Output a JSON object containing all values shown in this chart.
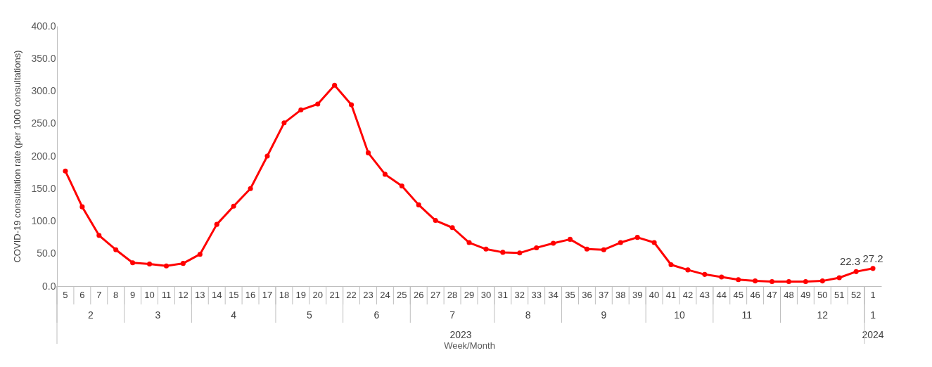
{
  "chart_data": {
    "type": "line",
    "xlabel": "Week/Month",
    "ylabel": "COVID-19 consultation rate (per 1000 consultations)",
    "categories": [
      "5",
      "6",
      "7",
      "8",
      "9",
      "10",
      "11",
      "12",
      "13",
      "14",
      "15",
      "16",
      "17",
      "18",
      "19",
      "20",
      "21",
      "22",
      "23",
      "24",
      "25",
      "26",
      "27",
      "28",
      "29",
      "30",
      "31",
      "32",
      "33",
      "34",
      "35",
      "36",
      "37",
      "38",
      "39",
      "40",
      "41",
      "42",
      "43",
      "44",
      "45",
      "46",
      "47",
      "48",
      "49",
      "50",
      "51",
      "52",
      "1"
    ],
    "series": [
      {
        "color": "#ff0000",
        "values": [
          177,
          122,
          78,
          56,
          36,
          34,
          31,
          35,
          49,
          95,
          123,
          150,
          200,
          251,
          271,
          280,
          309,
          279,
          205,
          172,
          154,
          125,
          101,
          90,
          67,
          57,
          52,
          51,
          59,
          66,
          72,
          57,
          56,
          67,
          75,
          67,
          33,
          25,
          18,
          14,
          10,
          8,
          7,
          7,
          7,
          8,
          13,
          22.3,
          27.2
        ],
        "value_labels": [
          null,
          null,
          null,
          null,
          null,
          null,
          null,
          null,
          null,
          null,
          null,
          null,
          null,
          null,
          null,
          null,
          null,
          null,
          null,
          null,
          null,
          null,
          null,
          null,
          null,
          null,
          null,
          null,
          null,
          null,
          null,
          null,
          null,
          null,
          null,
          null,
          null,
          null,
          null,
          null,
          null,
          null,
          null,
          null,
          null,
          null,
          null,
          "22.3",
          "27.2"
        ]
      }
    ],
    "ylim": [
      0,
      400
    ],
    "yticks": [
      {
        "value": 0,
        "label": "0.0"
      },
      {
        "value": 50,
        "label": "50.0"
      },
      {
        "value": 100,
        "label": "100.0"
      },
      {
        "value": 150,
        "label": "150.0"
      },
      {
        "value": 200,
        "label": "200.0"
      },
      {
        "value": 250,
        "label": "250.0"
      },
      {
        "value": 300,
        "label": "300.0"
      },
      {
        "value": 350,
        "label": "350.0"
      },
      {
        "value": 400,
        "label": "400.0"
      }
    ],
    "annotations": [
      "2",
      "3",
      "4",
      "5",
      "6",
      "7",
      "8",
      "9",
      "10",
      "11",
      "12",
      "1",
      "2023",
      "2024"
    ],
    "grid": false,
    "legend": false,
    "marker": "circle",
    "line_style": "solid"
  }
}
